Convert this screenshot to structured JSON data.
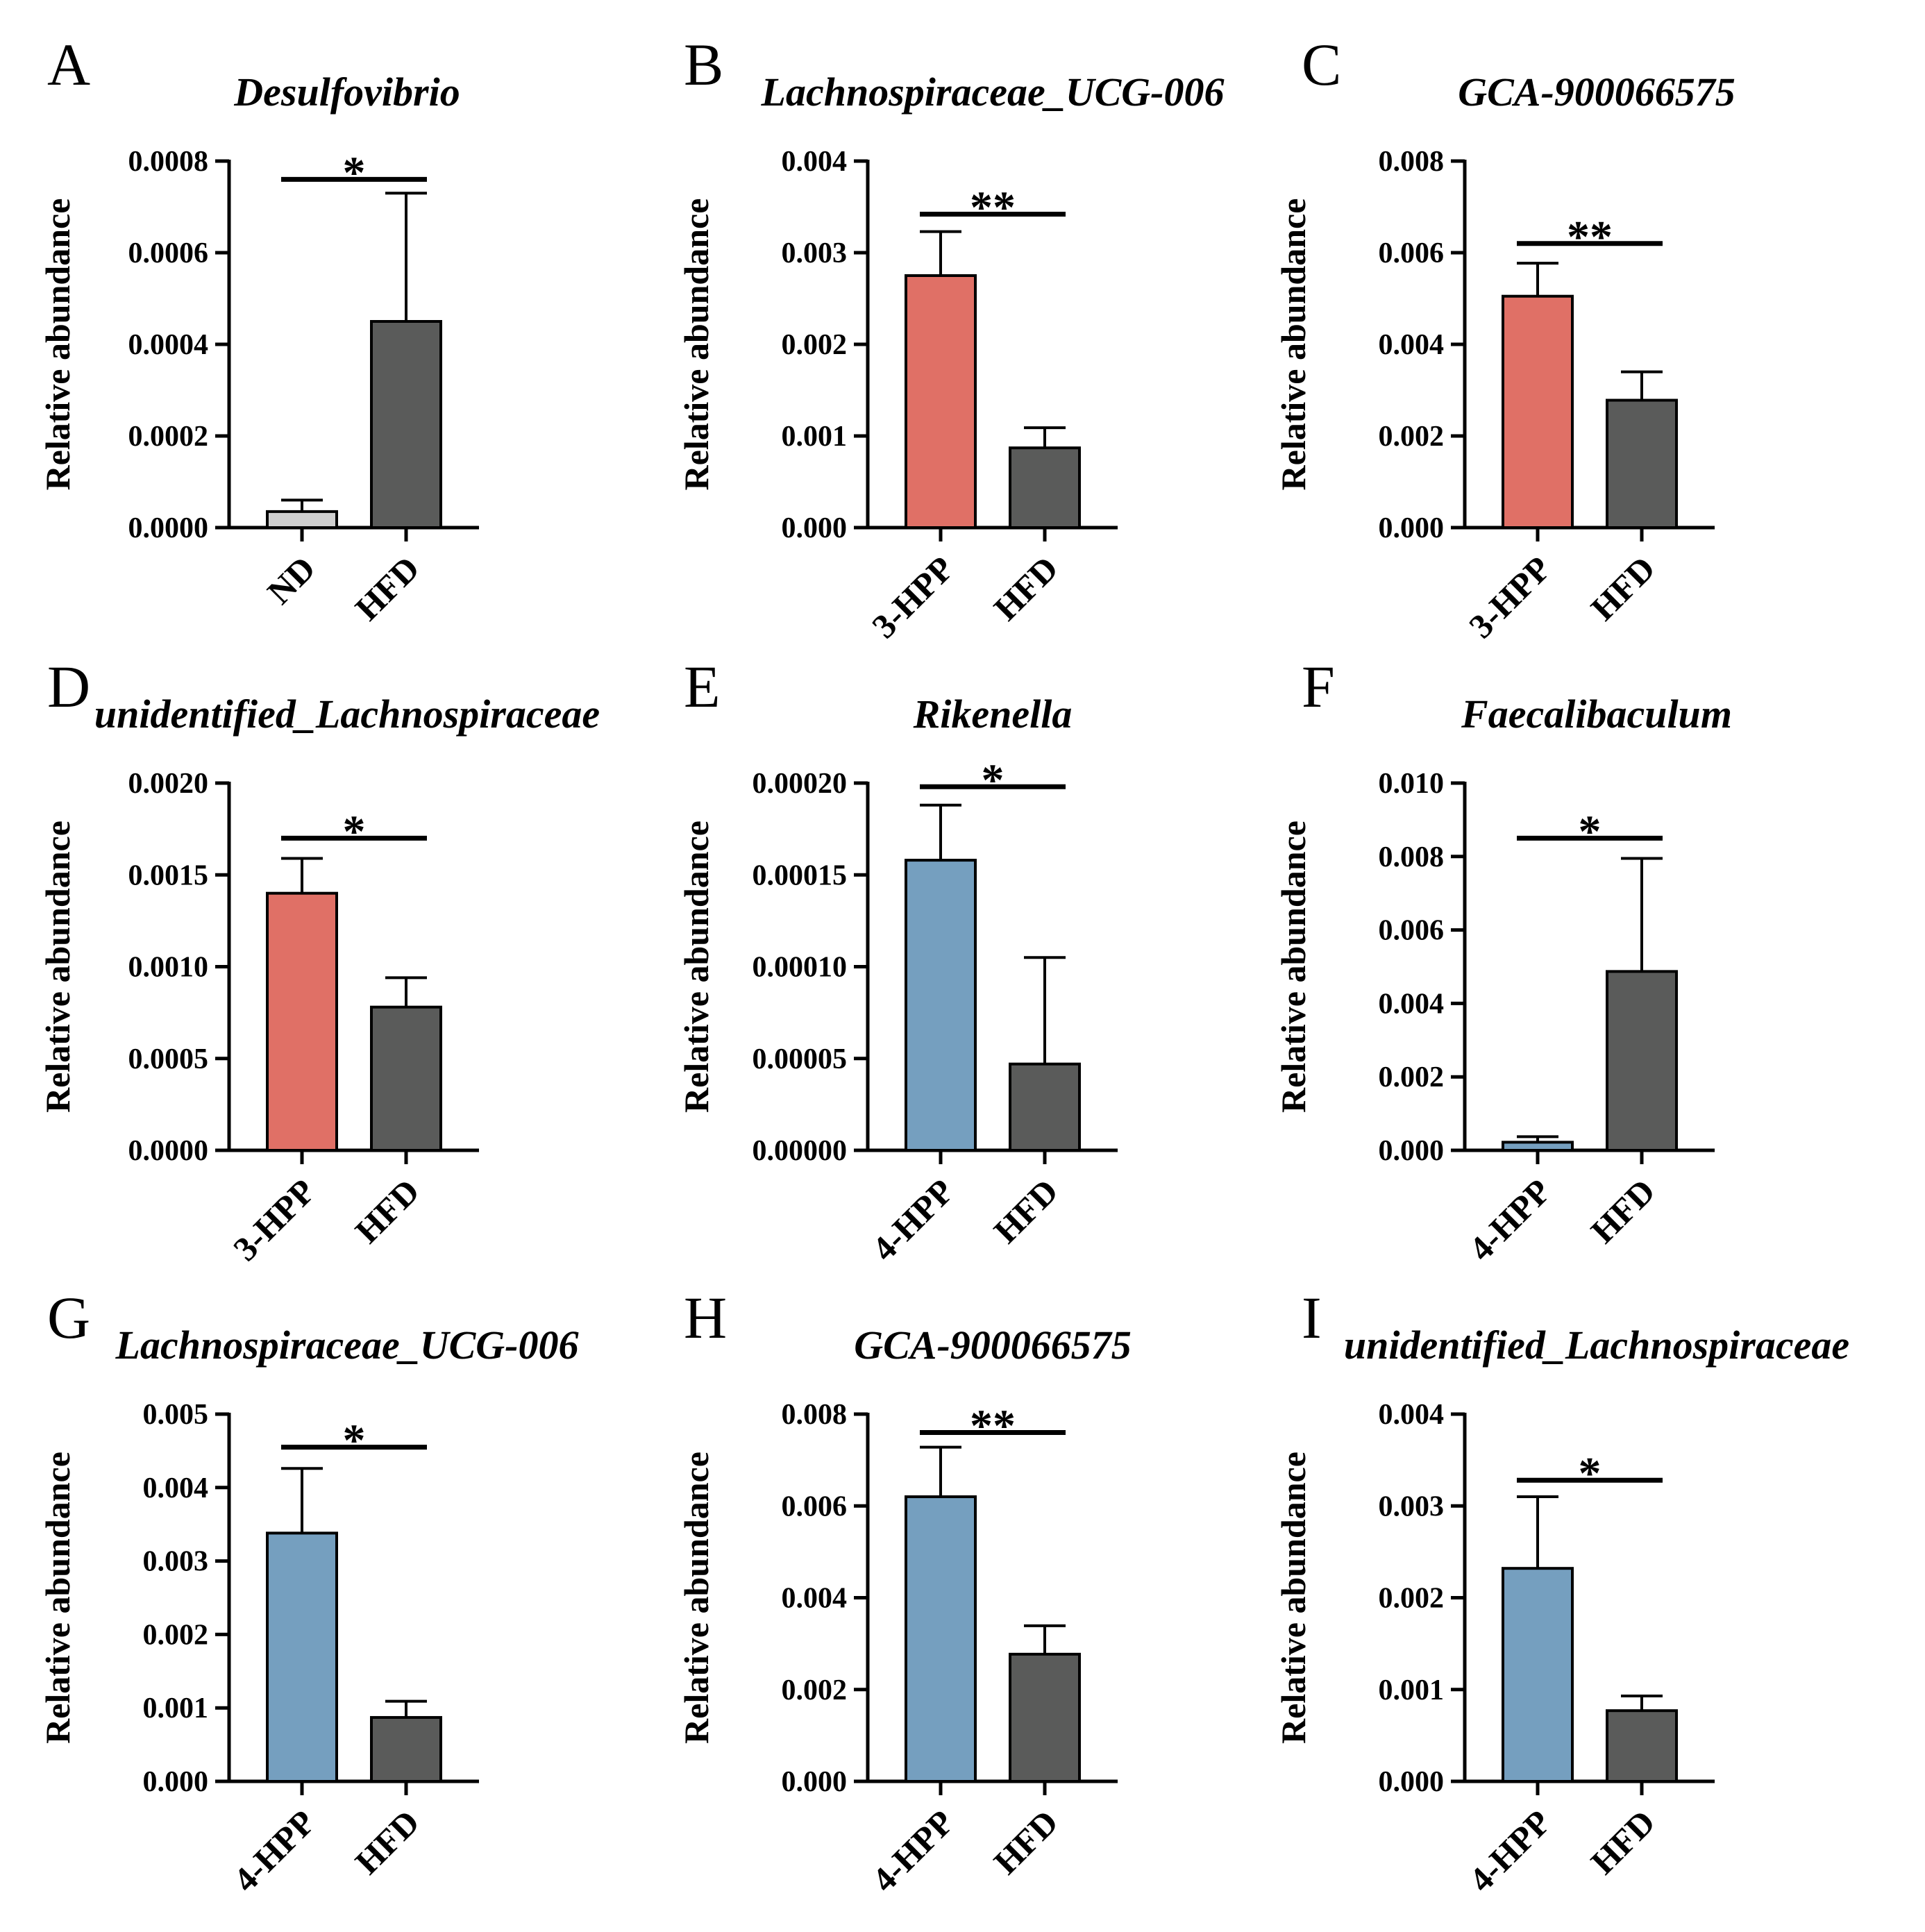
{
  "chart_data": [
    {
      "panel": "A",
      "title": "Desulfovibrio",
      "type": "bar",
      "ylabel": "Relative abundance",
      "categories": [
        "ND",
        "HFD"
      ],
      "values": [
        3.5e-05,
        0.00045
      ],
      "errors": [
        2.5e-05,
        0.00028
      ],
      "colors": [
        "#cfcfcf",
        "#5a5b5a"
      ],
      "ylim": [
        0,
        0.0008
      ],
      "yticks": [
        "0.0000",
        "0.0002",
        "0.0004",
        "0.0006",
        "0.0008"
      ],
      "significance": "*",
      "sig_level": 0.00076
    },
    {
      "panel": "B",
      "title": "Lachnospiraceae_UCG-006",
      "type": "bar",
      "ylabel": "Relative abundance",
      "categories": [
        "3-HPP",
        "HFD"
      ],
      "values": [
        0.00275,
        0.00087
      ],
      "errors": [
        0.00048,
        0.00022
      ],
      "colors": [
        "#e07066",
        "#5a5b5a"
      ],
      "ylim": [
        0,
        0.004
      ],
      "yticks": [
        "0.000",
        "0.001",
        "0.002",
        "0.003",
        "0.004"
      ],
      "significance": "**",
      "sig_level": 0.00342
    },
    {
      "panel": "C",
      "title": "GCA-900066575",
      "type": "bar",
      "ylabel": "Relative abundance",
      "categories": [
        "3-HPP",
        "HFD"
      ],
      "values": [
        0.00505,
        0.00278
      ],
      "errors": [
        0.00072,
        0.00062
      ],
      "colors": [
        "#e07066",
        "#5a5b5a"
      ],
      "ylim": [
        0,
        0.008
      ],
      "yticks": [
        "0.000",
        "0.002",
        "0.004",
        "0.006",
        "0.008"
      ],
      "significance": "**",
      "sig_level": 0.0062
    },
    {
      "panel": "D",
      "title": "unidentified_Lachnospiraceae",
      "type": "bar",
      "ylabel": "Relative abundance",
      "categories": [
        "3-HPP",
        "HFD"
      ],
      "values": [
        0.0014,
        0.00078
      ],
      "errors": [
        0.00019,
        0.00016
      ],
      "colors": [
        "#e07066",
        "#5a5b5a"
      ],
      "ylim": [
        0,
        0.002
      ],
      "yticks": [
        "0.0000",
        "0.0005",
        "0.0010",
        "0.0015",
        "0.0020"
      ],
      "significance": "*",
      "sig_level": 0.0017
    },
    {
      "panel": "E",
      "title": "Rikenella",
      "type": "bar",
      "ylabel": "Relative abundance",
      "categories": [
        "4-HPP",
        "HFD"
      ],
      "values": [
        0.000158,
        4.7e-05
      ],
      "errors": [
        3e-05,
        5.8e-05
      ],
      "colors": [
        "#759fbf",
        "#5a5b5a"
      ],
      "ylim": [
        0,
        0.0002
      ],
      "yticks": [
        "0.00000",
        "0.00005",
        "0.00010",
        "0.00015",
        "0.00020"
      ],
      "significance": "*",
      "sig_level": 0.000198
    },
    {
      "panel": "F",
      "title": "Faecalibaculum",
      "type": "bar",
      "ylabel": "Relative abundance",
      "categories": [
        "4-HPP",
        "HFD"
      ],
      "values": [
        0.00022,
        0.00487
      ],
      "errors": [
        0.00015,
        0.00308
      ],
      "colors": [
        "#759fbf",
        "#5a5b5a"
      ],
      "ylim": [
        0,
        0.01
      ],
      "yticks": [
        "0.000",
        "0.002",
        "0.004",
        "0.006",
        "0.008",
        "0.010"
      ],
      "significance": "*",
      "sig_level": 0.0085
    },
    {
      "panel": "G",
      "title": "Lachnospiraceae_UCG-006",
      "type": "bar",
      "ylabel": "Relative abundance",
      "categories": [
        "4-HPP",
        "HFD"
      ],
      "values": [
        0.00338,
        0.00087
      ],
      "errors": [
        0.00088,
        0.00022
      ],
      "colors": [
        "#759fbf",
        "#5a5b5a"
      ],
      "ylim": [
        0,
        0.005
      ],
      "yticks": [
        "0.000",
        "0.001",
        "0.002",
        "0.003",
        "0.004",
        "0.005"
      ],
      "significance": "*",
      "sig_level": 0.00455
    },
    {
      "panel": "H",
      "title": "GCA-900066575",
      "type": "bar",
      "ylabel": "Relative abundance",
      "categories": [
        "4-HPP",
        "HFD"
      ],
      "values": [
        0.0062,
        0.00277
      ],
      "errors": [
        0.00108,
        0.00062
      ],
      "colors": [
        "#759fbf",
        "#5a5b5a"
      ],
      "ylim": [
        0,
        0.008
      ],
      "yticks": [
        "0.000",
        "0.002",
        "0.004",
        "0.006",
        "0.008"
      ],
      "significance": "**",
      "sig_level": 0.0076
    },
    {
      "panel": "I",
      "title": "unidentified_Lachnospiraceae",
      "type": "bar",
      "ylabel": "Relative abundance",
      "categories": [
        "4-HPP",
        "HFD"
      ],
      "values": [
        0.00232,
        0.00077
      ],
      "errors": [
        0.00078,
        0.00016
      ],
      "colors": [
        "#759fbf",
        "#5a5b5a"
      ],
      "ylim": [
        0,
        0.004
      ],
      "yticks": [
        "0.000",
        "0.001",
        "0.002",
        "0.003",
        "0.004"
      ],
      "significance": "*",
      "sig_level": 0.00328
    }
  ]
}
